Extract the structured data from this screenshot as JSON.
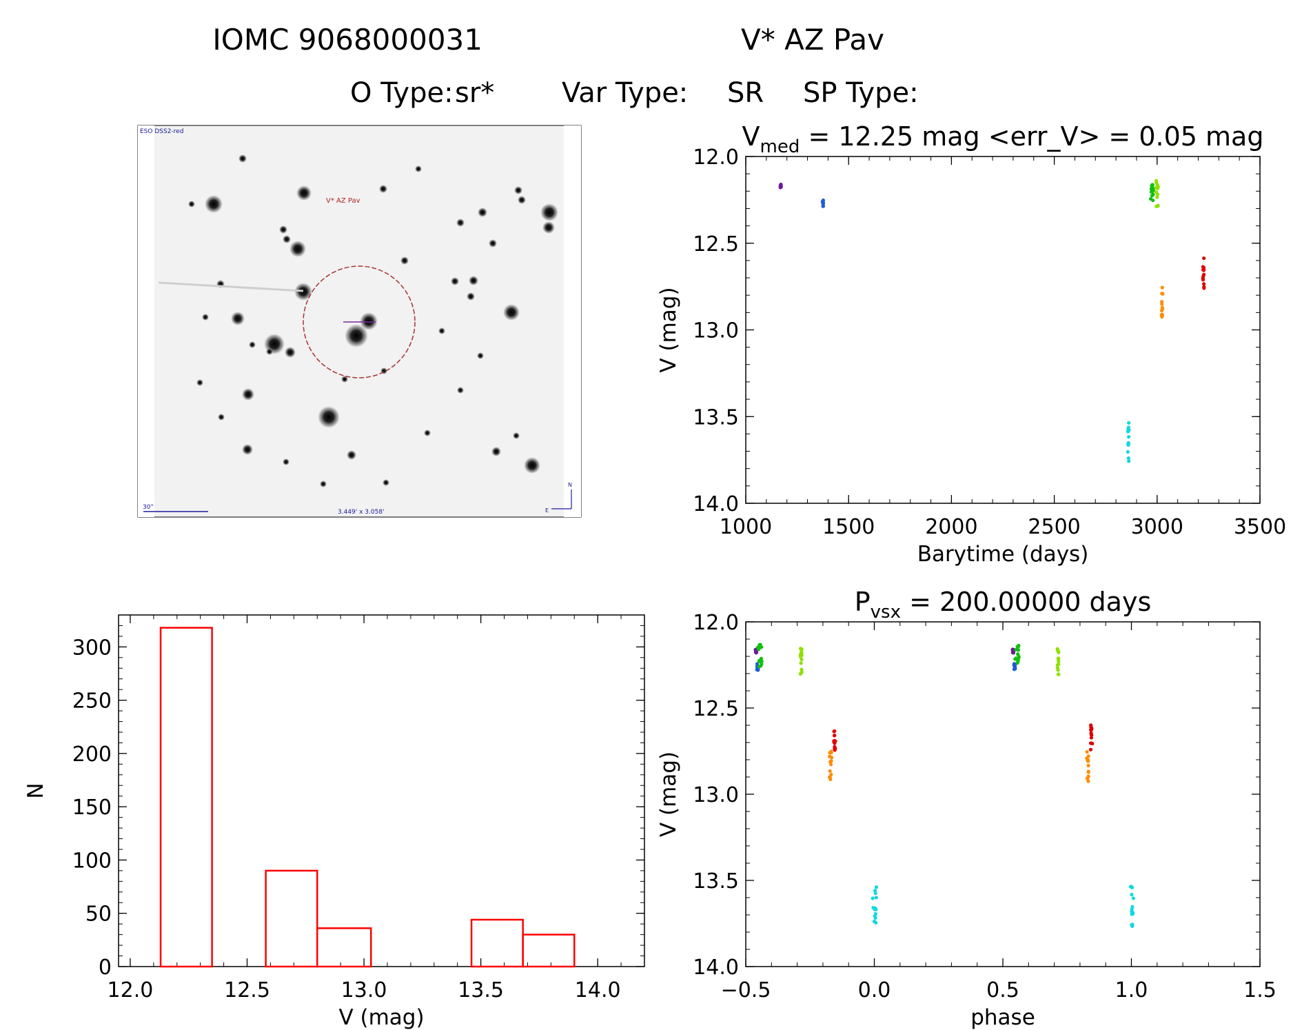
{
  "header": {
    "title_id": "IOMC 9068000031",
    "title_name": "V* AZ Pav",
    "otype_label": "O Type:",
    "otype_value": "sr*",
    "vartype_label": "Var Type:",
    "vartype_value": "SR",
    "sptype_label": "SP Type:",
    "sptype_value": ""
  },
  "finder": {
    "survey_label": "ESO DSS2-red",
    "target_label": "V* AZ Pav",
    "scale_label": "30\"",
    "fov_label": "3.449' x 3.058'",
    "north_label": "N",
    "east_label": "E",
    "colors": {
      "circle": "#a83232",
      "label": "#b22222",
      "scale": "#1a1a9a"
    }
  },
  "chart_data": [
    {
      "id": "lightcurve",
      "type": "scatter",
      "title_parts": [
        "V",
        "med",
        " = 12.25 mag <err_V> = 0.05 mag"
      ],
      "xlabel": "Barytime (days)",
      "ylabel": "V (mag)",
      "xlim": [
        1000,
        3500
      ],
      "ylim": [
        14.0,
        12.0
      ],
      "y_inverted": true,
      "xticks": [
        1000,
        1500,
        2000,
        2500,
        3000,
        3500
      ],
      "yticks": [
        12.0,
        12.5,
        13.0,
        13.5,
        14.0
      ],
      "series": [
        {
          "color": "#6a1b9a",
          "x": [
            1170
          ],
          "y": [
            12.17
          ],
          "x_spread": 2,
          "y_spread": 0.01
        },
        {
          "color": "#1e5bd6",
          "x": [
            1375
          ],
          "y": [
            12.27
          ],
          "x_spread": 2,
          "y_spread": 0.02
        },
        {
          "color": "#10c010",
          "x": [
            2975
          ],
          "y": [
            12.2
          ],
          "x_spread": 8,
          "y_spread": 0.07
        },
        {
          "color": "#8fe000",
          "x": [
            3000
          ],
          "y": [
            12.22
          ],
          "x_spread": 5,
          "y_spread": 0.08
        },
        {
          "color": "#ff8c00",
          "x": [
            3025
          ],
          "y": [
            12.84
          ],
          "x_spread": 3,
          "y_spread": 0.09
        },
        {
          "color": "#e00000",
          "x": [
            3225
          ],
          "y": [
            12.67
          ],
          "x_spread": 3,
          "y_spread": 0.09
        },
        {
          "color": "#10d8e0",
          "x": [
            2860
          ],
          "y": [
            13.65
          ],
          "x_spread": 4,
          "y_spread": 0.12
        }
      ]
    },
    {
      "id": "histogram",
      "type": "bar",
      "title": "",
      "xlabel": "V (mag)",
      "ylabel": "N",
      "xlim": [
        11.95,
        14.2
      ],
      "ylim": [
        0,
        330
      ],
      "xticks": [
        12.0,
        12.5,
        13.0,
        13.5,
        14.0
      ],
      "yticks": [
        0,
        50,
        100,
        150,
        200,
        250,
        300
      ],
      "bins": [
        {
          "x0": 12.13,
          "x1": 12.35,
          "value": 318
        },
        {
          "x0": 12.35,
          "x1": 12.58,
          "value": 0
        },
        {
          "x0": 12.58,
          "x1": 12.8,
          "value": 90
        },
        {
          "x0": 12.8,
          "x1": 13.03,
          "value": 36
        },
        {
          "x0": 13.03,
          "x1": 13.25,
          "value": 0
        },
        {
          "x0": 13.25,
          "x1": 13.46,
          "value": 0
        },
        {
          "x0": 13.46,
          "x1": 13.68,
          "value": 44
        },
        {
          "x0": 13.68,
          "x1": 13.9,
          "value": 30
        }
      ],
      "bar_color": "#ff0000"
    },
    {
      "id": "phasecurve",
      "type": "scatter",
      "title_parts": [
        "P",
        "vsx",
        " = 200.00000 days"
      ],
      "xlabel": "phase",
      "ylabel": "V (mag)",
      "xlim": [
        -0.5,
        1.5
      ],
      "ylim": [
        14.0,
        12.0
      ],
      "y_inverted": true,
      "xticks": [
        -0.5,
        0.0,
        0.5,
        1.0,
        1.5
      ],
      "yticks": [
        12.0,
        12.5,
        13.0,
        13.5,
        14.0
      ],
      "series": [
        {
          "color": "#6a1b9a",
          "x": [
            -0.46,
            0.54
          ],
          "y": [
            12.17,
            12.17
          ],
          "x_spread": 0.002,
          "y_spread": 0.01
        },
        {
          "color": "#1e5bd6",
          "x": [
            -0.455,
            0.545
          ],
          "y": [
            12.26,
            12.26
          ],
          "x_spread": 0.003,
          "y_spread": 0.02
        },
        {
          "color": "#10c010",
          "x": [
            -0.445,
            0.555
          ],
          "y": [
            12.2,
            12.2
          ],
          "x_spread": 0.008,
          "y_spread": 0.07
        },
        {
          "color": "#8fe000",
          "x": [
            -0.285,
            0.715
          ],
          "y": [
            12.23,
            12.23
          ],
          "x_spread": 0.003,
          "y_spread": 0.08
        },
        {
          "color": "#ff8c00",
          "x": [
            -0.17,
            0.83
          ],
          "y": [
            12.84,
            12.84
          ],
          "x_spread": 0.004,
          "y_spread": 0.09
        },
        {
          "color": "#e00000",
          "x": [
            -0.155,
            0.845
          ],
          "y": [
            12.68,
            12.68
          ],
          "x_spread": 0.004,
          "y_spread": 0.09
        },
        {
          "color": "#10d8e0",
          "x": [
            0.0,
            1.0
          ],
          "y": [
            13.65,
            13.65
          ],
          "x_spread": 0.008,
          "y_spread": 0.12
        }
      ]
    }
  ]
}
